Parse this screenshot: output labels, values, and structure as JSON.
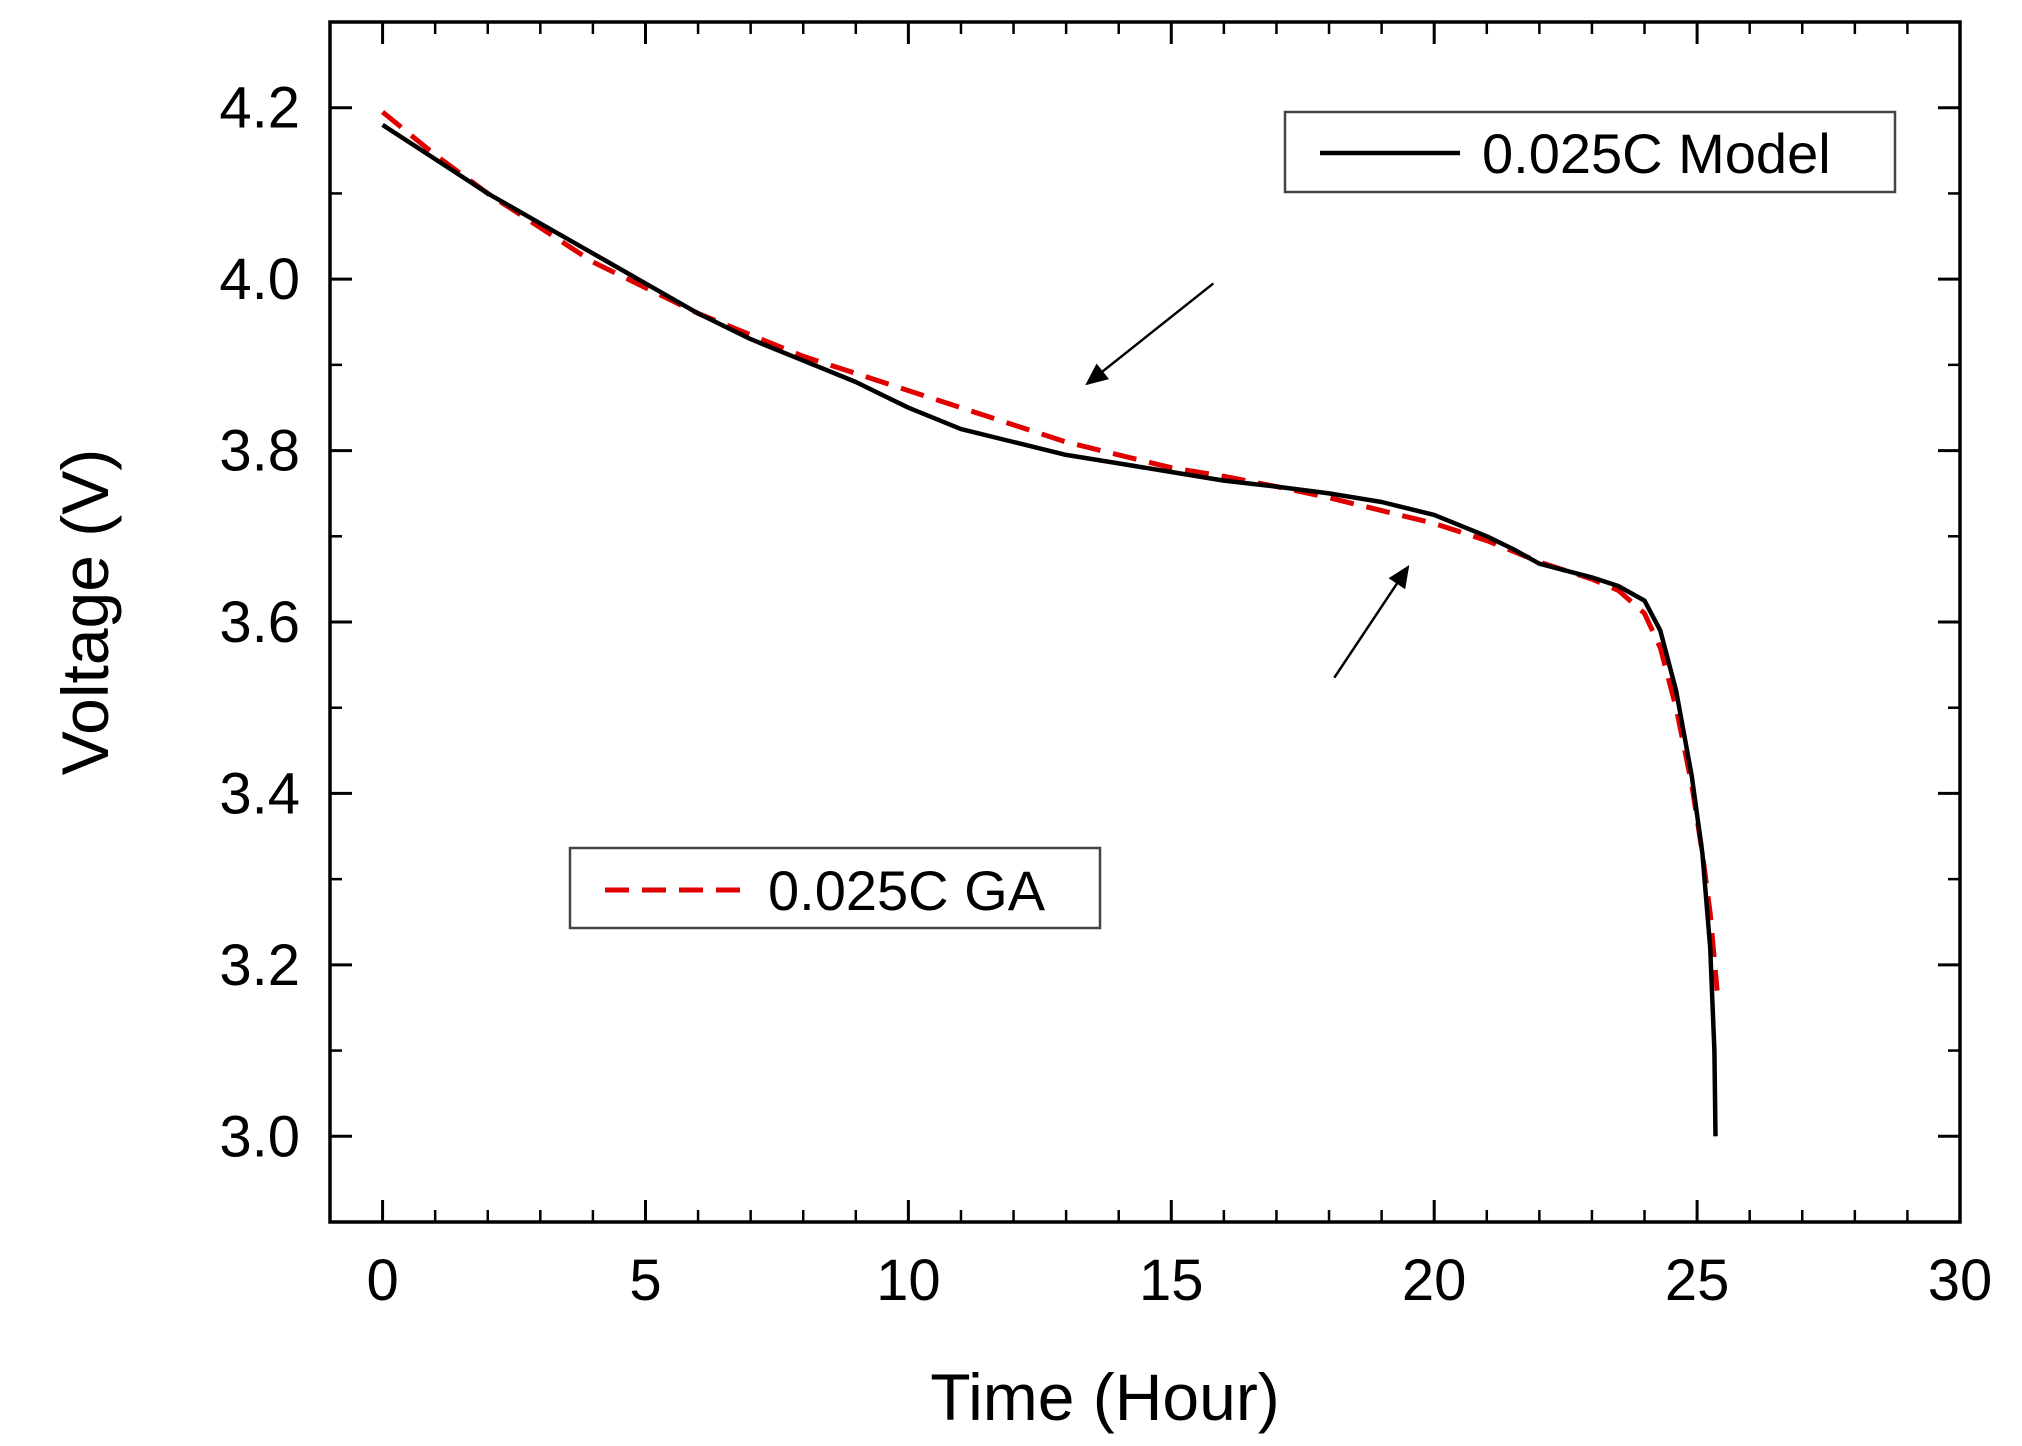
{
  "chart_data": {
    "type": "line",
    "title": "",
    "xlabel": "Time (Hour)",
    "ylabel": "Voltage (V)",
    "xlim": [
      -1,
      30
    ],
    "ylim": [
      2.9,
      4.3
    ],
    "xticks": [
      "0",
      "5",
      "10",
      "15",
      "20",
      "25",
      "30"
    ],
    "yticks": [
      "3.0",
      "3.2",
      "3.4",
      "3.6",
      "3.8",
      "4.0",
      "4.2"
    ],
    "grid": false,
    "series": [
      {
        "name": "0.025C Model",
        "color": "#000000",
        "style": "solid",
        "x": [
          0,
          1,
          2,
          3,
          4,
          5,
          6,
          7,
          8,
          9,
          10,
          11,
          12,
          13,
          14,
          15,
          16,
          17,
          18,
          19,
          20,
          21,
          21.5,
          22,
          22.5,
          23,
          23.5,
          24,
          24.3,
          24.6,
          24.9,
          25.1,
          25.25,
          25.33,
          25.35
        ],
        "y": [
          4.18,
          4.14,
          4.1,
          4.065,
          4.03,
          3.995,
          3.96,
          3.93,
          3.905,
          3.88,
          3.85,
          3.825,
          3.81,
          3.795,
          3.785,
          3.775,
          3.765,
          3.758,
          3.75,
          3.74,
          3.725,
          3.7,
          3.685,
          3.668,
          3.66,
          3.652,
          3.642,
          3.625,
          3.59,
          3.52,
          3.42,
          3.33,
          3.22,
          3.1,
          3.0
        ]
      },
      {
        "name": "0.025C GA",
        "color": "#e00000",
        "style": "dashed",
        "x": [
          0,
          1,
          2,
          3,
          4,
          5,
          6,
          7,
          8,
          9,
          10,
          11,
          12,
          13,
          14,
          15,
          16,
          17,
          18,
          19,
          20,
          21,
          22,
          23,
          23.5,
          24,
          24.3,
          24.6,
          24.9,
          25.1,
          25.25,
          25.38
        ],
        "y": [
          4.195,
          4.145,
          4.1,
          4.06,
          4.02,
          3.99,
          3.96,
          3.935,
          3.91,
          3.89,
          3.87,
          3.85,
          3.83,
          3.81,
          3.795,
          3.78,
          3.77,
          3.758,
          3.745,
          3.73,
          3.715,
          3.695,
          3.67,
          3.65,
          3.637,
          3.61,
          3.57,
          3.5,
          3.41,
          3.33,
          3.26,
          3.17
        ]
      }
    ],
    "legend": [
      {
        "label": "0.025C Model",
        "placement": "top-right"
      },
      {
        "label": "0.025C GA",
        "placement": "middle-left"
      }
    ],
    "annotations": [
      {
        "type": "arrow",
        "from": [
          15.8,
          3.995
        ],
        "to": [
          13.4,
          3.878
        ]
      },
      {
        "type": "arrow",
        "from": [
          18.1,
          3.535
        ],
        "to": [
          19.5,
          3.664
        ]
      }
    ]
  }
}
